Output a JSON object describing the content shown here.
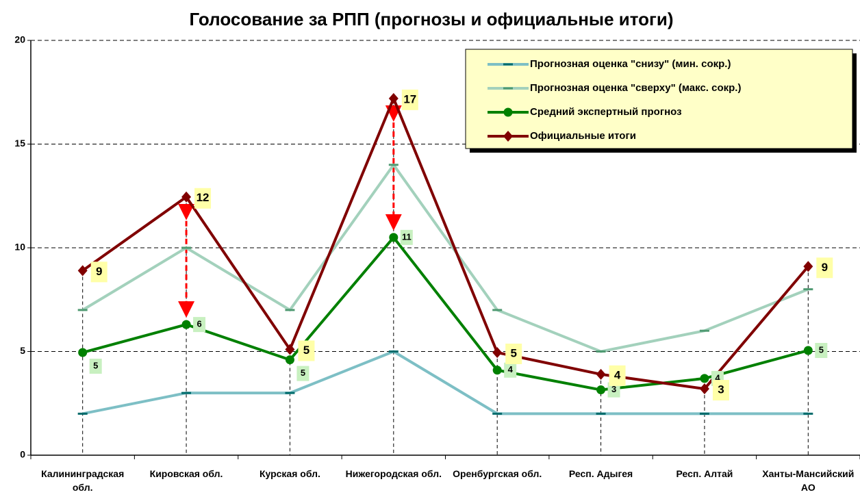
{
  "chart_data": {
    "type": "line",
    "title": "Голосование за РПП (прогнозы и официальные итоги)",
    "categories": [
      "Калининградская обл.",
      "Кировская обл.",
      "Курская обл.",
      "Нижегородская обл.",
      "Оренбургская обл.",
      "Респ. Адыгея",
      "Респ. Алтай",
      "Ханты-Мансийский АО"
    ],
    "ylim": [
      0,
      20
    ],
    "yticks": [
      0,
      5,
      10,
      15,
      20
    ],
    "grid": true,
    "series": [
      {
        "name": "Прогнозная оценка \"снизу\" (мин. сокр.)",
        "color": "#7dbfc5",
        "marker": "dash",
        "values": [
          2,
          3,
          3,
          5,
          2,
          2,
          2,
          2
        ]
      },
      {
        "name": "Прогнозная оценка \"сверху\" (макс. сокр.)",
        "color": "#a3d1bc",
        "marker": "dash",
        "values": [
          7,
          10,
          7,
          14,
          7,
          5,
          6,
          8
        ]
      },
      {
        "name": "Средний экспертный прогноз",
        "color": "#008000",
        "marker": "circle",
        "values": [
          4.95,
          6.3,
          4.6,
          10.5,
          4.1,
          3.15,
          3.7,
          5.05
        ],
        "value_labels": [
          "5",
          "6",
          "5",
          "11",
          "4",
          "3",
          "4",
          "5"
        ]
      },
      {
        "name": "Официальные итоги",
        "color": "#800000",
        "marker": "diamond",
        "values": [
          8.9,
          12.45,
          5.1,
          17.2,
          4.95,
          3.9,
          3.2,
          9.1
        ],
        "value_labels": [
          "9",
          "12",
          "5",
          "17",
          "5",
          "4",
          "3",
          "9"
        ]
      }
    ]
  }
}
